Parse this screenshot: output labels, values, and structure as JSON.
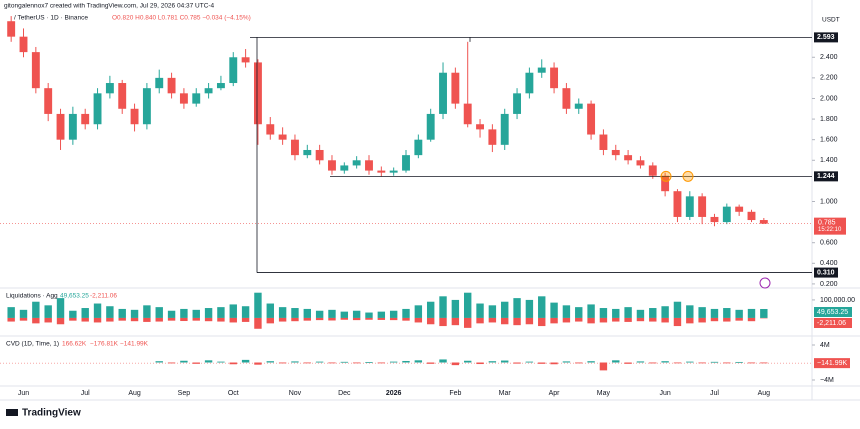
{
  "chart_data": {
    "type": "candlestick",
    "author_line": "gitongalennox7 created with TradingView.com, Jul 29, 2026 04:37 UTC-4",
    "symbol": "/ TetherUS · 1D · Binance",
    "ohlc_line": "O0.820 H0.840 L0.781 C0.785 −0.034 (−4.15%)",
    "currency": "USDT",
    "countdown": "15:22:10",
    "logo": "TradingView",
    "up_color": "#26a69a",
    "down_color": "#ef5350",
    "ylim": [
      0.17,
      2.82
    ],
    "yticks": [
      {
        "value": 0.2,
        "label": "0.200"
      },
      {
        "value": 0.4,
        "label": "0.400"
      },
      {
        "value": 0.6,
        "label": "0.600"
      },
      {
        "value": 1.0,
        "label": "1.000"
      },
      {
        "value": 1.4,
        "label": "1.400"
      },
      {
        "value": 1.6,
        "label": "1.600"
      },
      {
        "value": 1.8,
        "label": "1.800"
      },
      {
        "value": 2.0,
        "label": "2.000"
      },
      {
        "value": 2.2,
        "label": "2.200"
      },
      {
        "value": 2.4,
        "label": "2.400"
      }
    ],
    "price_lines": [
      2.593,
      1.244,
      {
        "value": 0.31,
        "label": "0.310"
      }
    ],
    "categories": [
      null,
      "Jun",
      null,
      null,
      null,
      null,
      "Jul",
      null,
      null,
      null,
      "Aug",
      null,
      null,
      null,
      "Sep",
      null,
      null,
      null,
      "Oct",
      null,
      null,
      null,
      null,
      "Nov",
      null,
      null,
      null,
      "Dec",
      null,
      null,
      null,
      "2026",
      null,
      null,
      null,
      null,
      "Feb",
      null,
      null,
      null,
      "Mar",
      null,
      null,
      null,
      "Apr",
      null,
      null,
      null,
      "May",
      null,
      null,
      null,
      null,
      "Jun",
      null,
      null,
      null,
      "Jul",
      null,
      null,
      null,
      "Aug"
    ],
    "open": [
      2.75,
      2.6,
      2.45,
      2.1,
      1.85,
      1.6,
      1.85,
      1.75,
      2.05,
      2.15,
      1.9,
      1.75,
      2.1,
      2.2,
      2.05,
      1.95,
      2.05,
      2.1,
      2.15,
      2.4,
      2.35,
      1.75,
      1.65,
      1.6,
      1.45,
      1.5,
      1.4,
      1.3,
      1.35,
      1.4,
      1.3,
      1.28,
      1.3,
      1.45,
      1.6,
      1.85,
      2.25,
      1.95,
      1.75,
      1.7,
      1.55,
      1.85,
      2.05,
      2.25,
      2.3,
      2.1,
      1.9,
      1.95,
      1.65,
      1.5,
      1.45,
      1.4,
      1.35,
      1.25,
      1.1,
      0.85,
      1.05,
      0.85,
      0.8,
      0.95,
      0.9,
      0.82
    ],
    "high": [
      2.8,
      2.68,
      2.5,
      2.15,
      1.9,
      1.92,
      1.9,
      2.1,
      2.22,
      2.18,
      1.95,
      2.15,
      2.28,
      2.25,
      2.1,
      2.1,
      2.15,
      2.22,
      2.45,
      2.48,
      2.38,
      1.82,
      1.72,
      1.65,
      1.55,
      1.55,
      1.45,
      1.38,
      1.44,
      1.45,
      1.34,
      1.33,
      1.5,
      1.65,
      1.9,
      2.35,
      2.3,
      2.55,
      1.8,
      1.75,
      1.9,
      2.1,
      2.3,
      2.38,
      2.35,
      2.15,
      2.0,
      1.98,
      1.7,
      1.55,
      1.5,
      1.44,
      1.38,
      1.28,
      1.12,
      1.1,
      1.08,
      0.88,
      0.98,
      0.97,
      0.92,
      0.84
    ],
    "low": [
      2.55,
      2.4,
      2.05,
      1.78,
      1.5,
      1.55,
      1.7,
      1.7,
      2.0,
      1.85,
      1.68,
      1.7,
      2.05,
      2.0,
      1.9,
      1.92,
      2.0,
      2.08,
      2.12,
      2.3,
      1.55,
      1.6,
      1.55,
      1.4,
      1.42,
      1.36,
      1.26,
      1.27,
      1.32,
      1.26,
      1.24,
      1.25,
      1.28,
      1.42,
      1.58,
      1.8,
      1.9,
      1.72,
      1.62,
      1.48,
      1.5,
      1.8,
      2.0,
      2.2,
      2.05,
      1.85,
      1.85,
      1.6,
      1.45,
      1.4,
      1.36,
      1.32,
      1.22,
      1.05,
      0.8,
      0.82,
      0.78,
      0.76,
      0.78,
      0.86,
      0.8,
      0.781
    ],
    "close": [
      2.6,
      2.45,
      2.1,
      1.85,
      1.6,
      1.85,
      1.75,
      2.05,
      2.15,
      1.9,
      1.75,
      2.1,
      2.2,
      2.05,
      1.95,
      2.05,
      2.1,
      2.15,
      2.4,
      2.35,
      1.75,
      1.65,
      1.6,
      1.45,
      1.5,
      1.4,
      1.3,
      1.35,
      1.4,
      1.3,
      1.28,
      1.3,
      1.45,
      1.6,
      1.85,
      2.25,
      1.95,
      1.75,
      1.7,
      1.55,
      1.85,
      2.05,
      2.25,
      2.3,
      2.1,
      1.9,
      1.95,
      1.65,
      1.5,
      1.45,
      1.4,
      1.35,
      1.25,
      1.1,
      0.85,
      1.05,
      0.85,
      0.8,
      0.95,
      0.9,
      0.82,
      0.785
    ],
    "liquidations": {
      "title": "Liquidations · Agg",
      "ylim": [
        -89000,
        155000
      ],
      "yticks": [
        {
          "value": 100000,
          "label": "100,000.00"
        }
      ],
      "long": [
        60000,
        45000,
        90000,
        70000,
        110000,
        40000,
        55000,
        80000,
        65000,
        50000,
        45000,
        70000,
        60000,
        40000,
        50000,
        45000,
        55000,
        60000,
        75000,
        65000,
        140000,
        80000,
        60000,
        55000,
        50000,
        40000,
        45000,
        35000,
        40000,
        30000,
        35000,
        40000,
        50000,
        70000,
        90000,
        120000,
        100000,
        140000,
        80000,
        70000,
        90000,
        110000,
        100000,
        120000,
        85000,
        70000,
        60000,
        75000,
        55000,
        50000,
        60000,
        45000,
        55000,
        65000,
        90000,
        70000,
        60000,
        50000,
        55000,
        45000,
        50000,
        49653.25
      ],
      "short": [
        -20000,
        -15000,
        -30000,
        -25000,
        -35000,
        -15000,
        -20000,
        -25000,
        -20000,
        -15000,
        -18000,
        -22000,
        -20000,
        -15000,
        -17000,
        -15000,
        -18000,
        -20000,
        -25000,
        -22000,
        -60000,
        -30000,
        -20000,
        -18000,
        -15000,
        -12000,
        -14000,
        -10000,
        -12000,
        -10000,
        -11000,
        -12000,
        -15000,
        -25000,
        -35000,
        -45000,
        -40000,
        -55000,
        -30000,
        -25000,
        -35000,
        -40000,
        -35000,
        -45000,
        -30000,
        -25000,
        -20000,
        -30000,
        -25000,
        -20000,
        -22000,
        -18000,
        -20000,
        -25000,
        -45000,
        -30000,
        -25000,
        -18000,
        -20000,
        -15000,
        -18000,
        -2211.06
      ],
      "last_long": {
        "value": 49653.25,
        "label": "49,653.25"
      },
      "last_short": {
        "value": -2211.06,
        "label": "-2,211.06"
      }
    },
    "cvd": {
      "title": "CVD (1D, Time, 1)",
      "legend_values": [
        "166.62K",
        "−176.81K",
        "−141.99K"
      ],
      "ylim": [
        -5370000,
        5830000
      ],
      "yticks": [
        {
          "value": 4000000,
          "label": "4M"
        },
        {
          "value": -4000000,
          "label": "−4M"
        }
      ],
      "values": [
        null,
        null,
        null,
        null,
        null,
        null,
        null,
        null,
        null,
        null,
        null,
        null,
        300000,
        -200000,
        400000,
        -300000,
        500000,
        200000,
        -400000,
        600000,
        -500000,
        300000,
        -200000,
        250000,
        -150000,
        200000,
        -100000,
        150000,
        -120000,
        100000,
        -80000,
        200000,
        350000,
        500000,
        -300000,
        700000,
        -600000,
        400000,
        -350000,
        300000,
        450000,
        -250000,
        200000,
        -300000,
        -400000,
        250000,
        -200000,
        300000,
        -1800000,
        500000,
        -300000,
        250000,
        -200000,
        300000,
        -150000,
        200000,
        -180000,
        150000,
        -100000,
        120000,
        -90000,
        -141990
      ],
      "last": {
        "value": -141990,
        "label": "−141.99K"
      }
    }
  }
}
